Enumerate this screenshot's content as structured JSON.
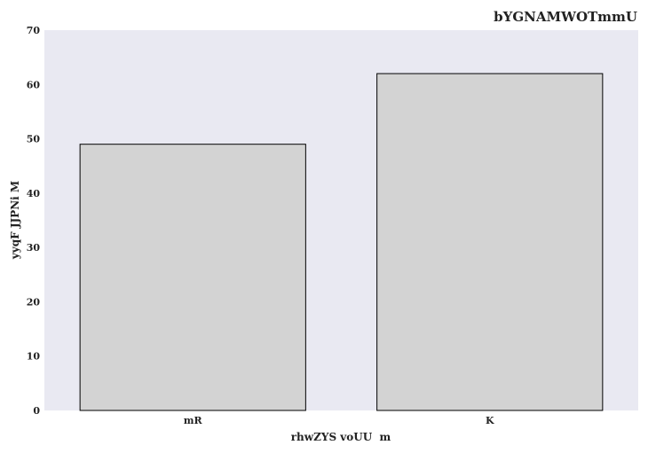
{
  "chart_data": {
    "type": "bar",
    "title": "bYGNAMWOTmmU",
    "xlabel": "rhwZYS voUU  m",
    "ylabel": "yyqF JJPNi M",
    "categories": [
      "mR",
      "K"
    ],
    "values": [
      49,
      62
    ],
    "ylim": [
      0,
      70
    ],
    "yticks": [
      0,
      10,
      20,
      30,
      40,
      50,
      60,
      70
    ],
    "grid": false,
    "legend": "none",
    "colors": {
      "plot_background": "#e9e9f2",
      "bar_fill": "#d3d3d3",
      "bar_stroke": "#000000"
    }
  }
}
